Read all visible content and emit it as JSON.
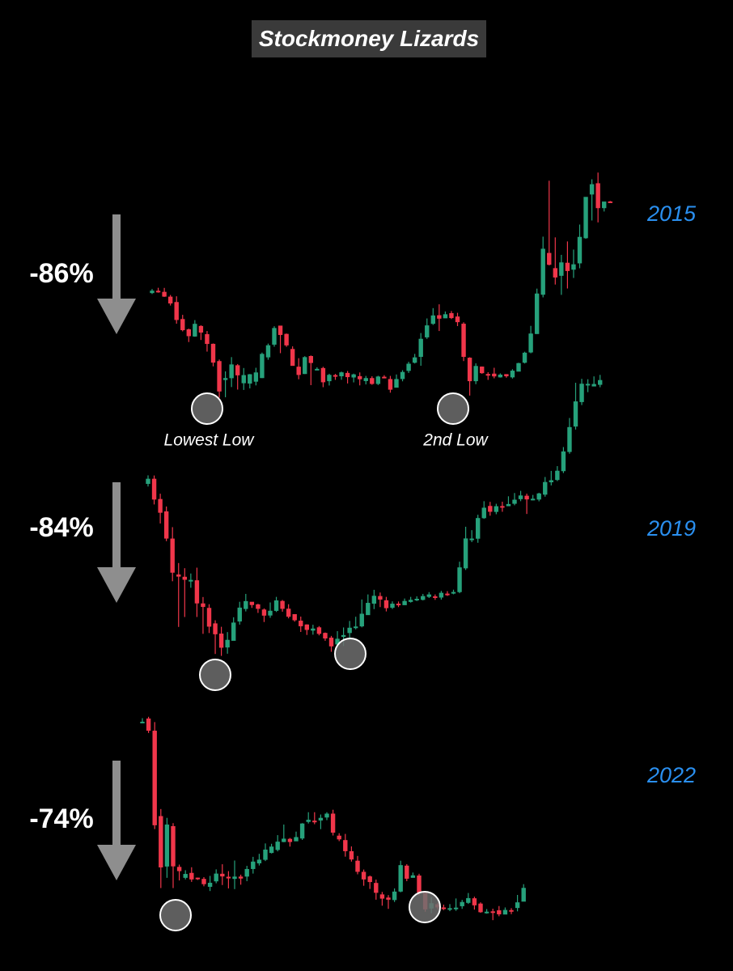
{
  "title": "Stockmoney Lizards",
  "colors": {
    "up": "#26a17b",
    "down": "#f0364a",
    "year_label": "#2a8fef",
    "arrow": "#8e8e8e",
    "marker_fill": "#6e6e6e"
  },
  "labels": {
    "lowest_low": "Lowest Low",
    "second_low": "2nd Low"
  },
  "chart_data": [
    {
      "type": "candlestick",
      "year": "2015",
      "drawdown": "-86%",
      "candles": [
        [
          83.0,
          85.0,
          86.4,
          82.2
        ],
        [
          84.9,
          83.7,
          87.4,
          83.3
        ],
        [
          84.0,
          80.0,
          87.3,
          79.8
        ],
        [
          80.0,
          74.3,
          81.4,
          72.6
        ],
        [
          75.5,
          60.5,
          80.3,
          57.4
        ],
        [
          61.3,
          52.0,
          64.8,
          51.0
        ],
        [
          52.7,
          47.0,
          53.3,
          42.1
        ],
        [
          46.7,
          57.3,
          60.4,
          46.5
        ],
        [
          55.5,
          50.0,
          56.1,
          43.8
        ],
        [
          48.7,
          40.5,
          51.3,
          34.1
        ],
        [
          40.6,
          24.9,
          40.9,
          21.8
        ],
        [
          26.2,
          0.8,
          27.5,
          -4.3
        ],
        [
          10.4,
          12.0,
          17.6,
          -4.0
        ],
        [
          11.9,
          23.4,
          29.5,
          4.5
        ],
        [
          22.7,
          14.3,
          23.7,
          2.4
        ],
        [
          7.7,
          14.5,
          20.4,
          2.1
        ],
        [
          7.4,
          15.2,
          15.4,
          3.4
        ],
        [
          9.0,
          16.7,
          20.6,
          5.9
        ],
        [
          12.0,
          32.2,
          33.3,
          12.0
        ],
        [
          29.3,
          39.4,
          40.8,
          27.3
        ],
        [
          39.9,
          53.8,
          55.3,
          38.2
        ],
        [
          55.8,
          48.0,
          55.3,
          32.8
        ],
        [
          48.9,
          39.3,
          49.2,
          38.1
        ],
        [
          36.3,
          22.2,
          38.5,
          22.5
        ],
        [
          21.5,
          14.6,
          28.6,
          11.0
        ],
        [
          15.4,
          29.5,
          30.3,
          15.4
        ],
        [
          30.4,
          24.6,
          30.9,
          6.1
        ],
        [
          19.7,
          19.7,
          21.0,
          19.5
        ],
        [
          20.4,
          8.5,
          21.4,
          4.4
        ],
        [
          9.4,
          14.7,
          15.6,
          5.8
        ],
        [
          14.5,
          13.4,
          15.5,
          10.5
        ],
        [
          13.5,
          16.8,
          17.4,
          10.6
        ],
        [
          16.3,
          12.8,
          17.9,
          7.5
        ],
        [
          12.5,
          15.1,
          15.7,
          8.4
        ],
        [
          13.6,
          11.0,
          16.7,
          5.9
        ],
        [
          9.5,
          12.0,
          13.8,
          6.7
        ],
        [
          12.0,
          7.1,
          13.5,
          6.4
        ],
        [
          7.1,
          13.3,
          13.9,
          6.2
        ],
        [
          13.1,
          12.0,
          14.4,
          11.8
        ],
        [
          11.2,
          2.3,
          13.8,
          -0.2
        ],
        [
          4.0,
          11.2,
          15.0,
          4.7
        ],
        [
          11.2,
          17.1,
          18.6,
          9.3
        ],
        [
          18.0,
          24.0,
          25.6,
          16.3
        ],
        [
          24.8,
          29.3,
          32.2,
          24.2
        ],
        [
          29.7,
          44.8,
          49.6,
          22.3
        ],
        [
          46.0,
          56.0,
          61.8,
          44.7
        ],
        [
          57.3,
          64.3,
          70.4,
          56.4
        ],
        [
          64.5,
          61.6,
          73.6,
          51.3
        ],
        [
          61.9,
          65.3,
          67.6,
          62.1
        ],
        [
          66.2,
          62.1,
          68.0,
          61.3
        ],
        [
          63.4,
          58.7,
          66.5,
          55.4
        ],
        [
          57.4,
          29.7,
          58.6,
          26.2
        ],
        [
          29.0,
          9.4,
          29.4,
          -2.6
        ],
        [
          9.4,
          22.1,
          24.3,
          6.9
        ],
        [
          21.6,
          16.1,
          21.7,
          15.6
        ],
        [
          15.4,
          14.8,
          16.9,
          10.5
        ],
        [
          15.7,
          13.4,
          20.6,
          11.8
        ],
        [
          12.6,
          14.9,
          15.9,
          12.4
        ],
        [
          15.3,
          13.5,
          14.5,
          12.3
        ],
        [
          12.6,
          18.2,
          19.4,
          11.6
        ],
        [
          17.4,
          24.5,
          24.8,
          17.6
        ],
        [
          24.8,
          33.2,
          34.0,
          24.2
        ],
        [
          33.4,
          49.2,
          55.6,
          32.7
        ],
        [
          48.8,
          82.6,
          86.7,
          48.8
        ],
        [
          81.6,
          120.0,
          130.1,
          79.4
        ],
        [
          116.5,
          106.6,
          176.8,
          106.1
        ],
        [
          103.8,
          96.0,
          129.5,
          90.1
        ],
        [
          97.4,
          108.6,
          114.9,
          81.5
        ],
        [
          108.3,
          101.4,
          126.1,
          86.8
        ],
        [
          102.5,
          107.0,
          119.3,
          95.6
        ],
        [
          107.8,
          129.9,
          140.2,
          103.7
        ],
        [
          128.8,
          163.3,
          162.8,
          128.3
        ],
        [
          165.3,
          173.9,
          178.0,
          143.6
        ],
        [
          174.7,
          153.9,
          183.6,
          142.0
        ],
        [
          153.9,
          159.4,
          157.8,
          151.1
        ],
        [
          159.5,
          158.8,
          159.9,
          158.6
        ]
      ]
    },
    {
      "type": "candlestick",
      "year": "2019",
      "drawdown": "-84%",
      "candles": [
        [
          84.5,
          88.3,
          90.8,
          82.6
        ],
        [
          88.3,
          73.0,
          90.7,
          69.4
        ],
        [
          73.4,
          63.3,
          77.3,
          55.4
        ],
        [
          64.3,
          44.3,
          67.9,
          42.4
        ],
        [
          44.3,
          19.2,
          52.7,
          12.9
        ],
        [
          17.9,
          16.3,
          26.3,
          -20.7
        ],
        [
          16.2,
          14.0,
          22.5,
          -13.4
        ],
        [
          13.9,
          13.9,
          18.6,
          8.1
        ],
        [
          13.6,
          -3.4,
          22.9,
          -13.4
        ],
        [
          -3.4,
          -6.0,
          1.3,
          -25.8
        ],
        [
          -6.7,
          -20.5,
          -4.0,
          -25.2
        ],
        [
          -18.1,
          -26.1,
          -15.8,
          -40.6
        ],
        [
          -25.6,
          -36.0,
          -20.6,
          -42.0
        ],
        [
          -35.8,
          -30.2,
          -24.5,
          -40.4
        ],
        [
          -30.9,
          -17.5,
          -13.6,
          -29.8
        ],
        [
          -16.7,
          -6.5,
          -2.2,
          -19.0
        ],
        [
          -7.5,
          -1.7,
          3.6,
          -9.3
        ],
        [
          -2.2,
          -4.6,
          -3.6,
          -6.7
        ],
        [
          -4.1,
          -7.4,
          -3.7,
          -10.4
        ],
        [
          -7.9,
          -12.4,
          -7.1,
          -17.1
        ],
        [
          -12.3,
          -8.8,
          -2.7,
          -14.0
        ],
        [
          -8.9,
          -1.2,
          1.4,
          -9.7
        ],
        [
          -1.6,
          -7.4,
          -0.9,
          -9.5
        ],
        [
          -7.3,
          -13.2,
          -4.0,
          -14.4
        ],
        [
          -11.3,
          -15.8,
          -11.8,
          -16.8
        ],
        [
          -16.1,
          -20.2,
          -13.1,
          -24.4
        ],
        [
          -18.9,
          -22.9,
          -18.8,
          -26.6
        ],
        [
          -23.4,
          -21.9,
          -19.1,
          -26.4
        ],
        [
          -21.0,
          -25.8,
          -20.1,
          -26.9
        ],
        [
          -25.1,
          -29.2,
          -24.8,
          -30.9
        ],
        [
          -28.6,
          -35.0,
          -27.3,
          -39.0
        ],
        [
          -33.6,
          -29.4,
          -23.8,
          -35.7
        ],
        [
          -28.0,
          -26.7,
          -21.1,
          -34.7
        ],
        [
          -25.2,
          -21.3,
          -16.3,
          -30.4
        ],
        [
          -20.5,
          -20.4,
          -13.2,
          -22.5
        ],
        [
          -20.3,
          -11.0,
          -0.5,
          -21.0
        ],
        [
          -12.0,
          -3.0,
          3.2,
          -11.7
        ],
        [
          -3.6,
          2.2,
          6.6,
          -7.6
        ],
        [
          2.0,
          -0.6,
          4.6,
          -6.1
        ],
        [
          -1.1,
          -6.9,
          1.4,
          -9.3
        ],
        [
          -6.6,
          -3.6,
          -1.9,
          -7.5
        ],
        [
          -3.6,
          -4.2,
          -2.0,
          -6.1
        ],
        [
          -4.7,
          -1.6,
          0.2,
          -2.6
        ],
        [
          -2.3,
          -0.8,
          1.4,
          -2.8
        ],
        [
          -0.1,
          0.0,
          1.8,
          -1.7
        ],
        [
          -0.8,
          2.0,
          3.6,
          -1.2
        ],
        [
          1.4,
          3.2,
          4.9,
          0.6
        ],
        [
          1.8,
          0.9,
          3.2,
          -0.8
        ],
        [
          0.9,
          4.4,
          5.8,
          -0.6
        ],
        [
          3.8,
          3.5,
          5.6,
          2.1
        ],
        [
          4.8,
          5.0,
          6.7,
          3.3
        ],
        [
          4.9,
          23.1,
          27.3,
          4.1
        ],
        [
          22.4,
          44.4,
          53.0,
          21.2
        ],
        [
          43.9,
          44.3,
          50.5,
          41.7
        ],
        [
          44.2,
          59.4,
          61.8,
          41.2
        ],
        [
          59.3,
          67.0,
          71.8,
          58.8
        ],
        [
          68.3,
          64.0,
          71.3,
          61.1
        ],
        [
          63.9,
          68.1,
          69.9,
          62.2
        ],
        [
          68.2,
          67.5,
          71.4,
          64.0
        ],
        [
          68.1,
          69.7,
          75.4,
          68.6
        ],
        [
          69.9,
          72.9,
          77.8,
          68.8
        ],
        [
          73.3,
          76.0,
          79.4,
          71.8
        ],
        [
          75.8,
          73.1,
          77.3,
          62.4
        ],
        [
          73.3,
          73.6,
          76.4,
          72.4
        ],
        [
          73.0,
          77.5,
          78.0,
          71.7
        ],
        [
          76.6,
          85.9,
          89.6,
          75.1
        ],
        [
          85.7,
          87.2,
          94.1,
          83.4
        ],
        [
          87.4,
          94.2,
          97.6,
          86.6
        ],
        [
          93.9,
          108.4,
          111.6,
          92.5
        ],
        [
          108.0,
          126.3,
          133.0,
          106.7
        ],
        [
          126.7,
          145.2,
          158.9,
          124.5
        ],
        [
          144.7,
          158.2,
          161.8,
          142.5
        ],
        [
          158.0,
          158.1,
          161.5,
          152.0
        ],
        [
          156.2,
          158.0,
          163.6,
          156.5
        ],
        [
          157.4,
          160.9,
          164.7,
          155.6
        ]
      ]
    },
    {
      "type": "candlestick",
      "year": "2022",
      "drawdown": "-74%",
      "candles": [
        [
          84.2,
          84.9,
          86.9,
          84.1
        ],
        [
          86.7,
          79.8,
          87.7,
          78.5
        ],
        [
          79.8,
          26.2,
          84.7,
          24.0
        ],
        [
          31.4,
          2.3,
          35.4,
          -9.4
        ],
        [
          2.8,
          26.6,
          30.4,
          -3.6
        ],
        [
          25.7,
          2.9,
          27.4,
          -9.4
        ],
        [
          2.6,
          0.2,
          3.9,
          -5.1
        ],
        [
          -3.6,
          -1.4,
          0.7,
          -4.5
        ],
        [
          -0.8,
          -4.5,
          2.4,
          -5.9
        ],
        [
          -3.5,
          -4.2,
          -3.5,
          -4.8
        ],
        [
          -4.2,
          -7.2,
          -3.2,
          -8.4
        ],
        [
          -8.7,
          -6.4,
          -2.5,
          -11.1
        ],
        [
          -5.6,
          -1.2,
          1.2,
          -6.7
        ],
        [
          -1.3,
          -2.8,
          4.1,
          -7.7
        ],
        [
          -3.0,
          -3.8,
          0.2,
          -9.6
        ],
        [
          -4.2,
          -2.9,
          6.2,
          -10.0
        ],
        [
          -2.9,
          -4.0,
          -1.8,
          -7.5
        ],
        [
          -2.9,
          1.4,
          3.2,
          -5.5
        ],
        [
          1.4,
          5.6,
          8.3,
          -1.2
        ],
        [
          4.6,
          6.7,
          10.0,
          3.4
        ],
        [
          6.6,
          12.4,
          15.9,
          5.9
        ],
        [
          10.5,
          14.1,
          15.7,
          10.2
        ],
        [
          12.2,
          16.9,
          20.6,
          11.4
        ],
        [
          16.7,
          18.6,
          26.6,
          16.6
        ],
        [
          18.5,
          16.7,
          19.0,
          14.1
        ],
        [
          17.1,
          19.5,
          22.6,
          17.5
        ],
        [
          18.7,
          27.2,
          27.4,
          17.9
        ],
        [
          28.1,
          29.3,
          33.6,
          27.2
        ],
        [
          28.8,
          28.3,
          33.6,
          26.8
        ],
        [
          28.9,
          30.4,
          32.3,
          24.0
        ],
        [
          30.6,
          32.8,
          33.6,
          29.1
        ],
        [
          32.8,
          22.0,
          35.0,
          20.4
        ],
        [
          20.3,
          18.2,
          21.7,
          17.2
        ],
        [
          17.8,
          11.5,
          21.3,
          8.4
        ],
        [
          11.5,
          6.8,
          14.2,
          5.6
        ],
        [
          6.1,
          -0.2,
          8.8,
          -1.6
        ],
        [
          -0.2,
          -4.5,
          1.1,
          -8.1
        ],
        [
          -2.8,
          -6.0,
          -2.3,
          -9.9
        ],
        [
          -6.5,
          -12.1,
          -4.6,
          -16.0
        ],
        [
          -13.0,
          -15.4,
          -11.6,
          -19.4
        ],
        [
          -14.8,
          -16.0,
          -13.4,
          -21.2
        ],
        [
          -16.2,
          -11.4,
          -9.6,
          -17.3
        ],
        [
          -11.4,
          3.6,
          6.1,
          -11.8
        ],
        [
          3.3,
          -4.1,
          4.1,
          -5.5
        ],
        [
          -3.6,
          -2.2,
          -0.6,
          -3.5
        ],
        [
          -2.3,
          -12.0,
          -1.3,
          -13.6
        ],
        [
          -11.8,
          -21.5,
          -11.1,
          -22.8
        ],
        [
          -21.0,
          -18.0,
          -14.6,
          -23.7
        ],
        [
          -18.6,
          -20.4,
          -17.7,
          -21.6
        ],
        [
          -20.4,
          -20.9,
          -18.8,
          -21.9
        ],
        [
          -21.2,
          -20.8,
          -18.5,
          -22.5
        ],
        [
          -20.9,
          -20.5,
          -15.3,
          -22.3
        ],
        [
          -19.7,
          -17.3,
          -16.1,
          -21.2
        ],
        [
          -17.8,
          -15.1,
          -12.2,
          -18.4
        ],
        [
          -15.2,
          -19.2,
          -14.3,
          -21.6
        ],
        [
          -18.2,
          -23.1,
          -17.5,
          -23.4
        ],
        [
          -23.2,
          -22.8,
          -21.3,
          -23.9
        ],
        [
          -22.6,
          -22.8,
          -21.1,
          -27.6
        ],
        [
          -22.0,
          -24.3,
          -19.6,
          -25.4
        ],
        [
          -24.4,
          -21.8,
          -20.4,
          -24.0
        ],
        [
          -21.9,
          -22.0,
          -20.8,
          -24.2
        ],
        [
          -20.7,
          -17.5,
          -13.3,
          -22.6
        ],
        [
          -17.1,
          -9.3,
          -7.2,
          -15.6
        ]
      ]
    }
  ]
}
